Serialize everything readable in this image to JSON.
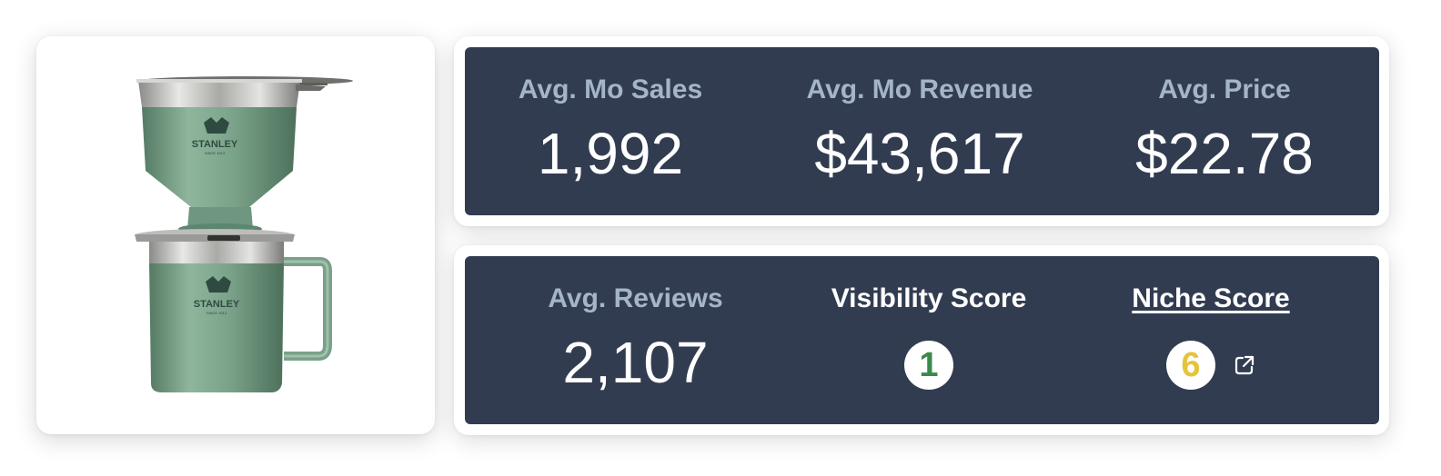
{
  "product": {
    "brand_mark": "STANLEY",
    "brand_tagline": "SINCE 1913"
  },
  "summary": {
    "avg_mo_sales": {
      "label": "Avg. Mo Sales",
      "value": "1,992"
    },
    "avg_mo_revenue": {
      "label": "Avg. Mo Revenue",
      "value": "$43,617"
    },
    "avg_price": {
      "label": "Avg. Price",
      "value": "$22.78"
    }
  },
  "scores": {
    "avg_reviews": {
      "label": "Avg. Reviews",
      "value": "2,107"
    },
    "visibility_score": {
      "label": "Visibility Score",
      "value": "1",
      "color": "#3a8a4a"
    },
    "niche_score": {
      "label": "Niche Score",
      "value": "6",
      "color": "#e5c43a",
      "link_icon": "external-link-icon"
    }
  },
  "colors": {
    "panel_bg": "#323c51",
    "label_muted": "#a4b4c9",
    "text_light": "#ffffff",
    "product_green": "#7fa88f"
  }
}
